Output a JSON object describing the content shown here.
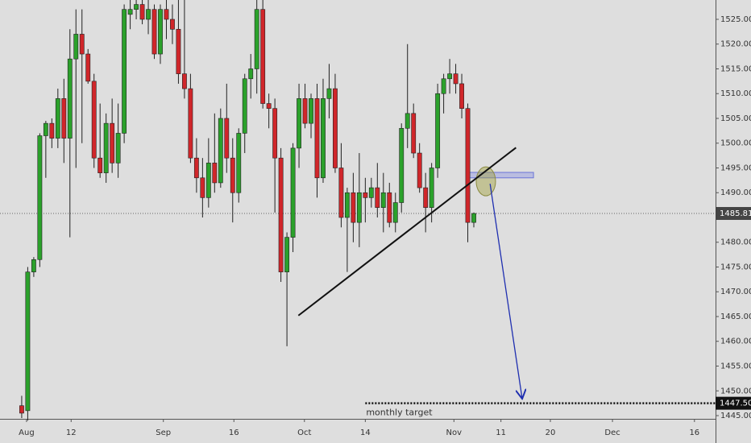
{
  "chart_data": {
    "type": "candlestick",
    "x": [
      0,
      1,
      2,
      3,
      4,
      5,
      6,
      7,
      8,
      9,
      10,
      11,
      12,
      13,
      14,
      15,
      16,
      17,
      18,
      19,
      20,
      21,
      22,
      23,
      24,
      25,
      26,
      27,
      28,
      29,
      30,
      31,
      32,
      33,
      34,
      35,
      36,
      37,
      38,
      39,
      40,
      41,
      42,
      43,
      44,
      45,
      46,
      47,
      48,
      49,
      50,
      51,
      52,
      53,
      54,
      55,
      56,
      57,
      58,
      59,
      60,
      61,
      62,
      63,
      64,
      65,
      66,
      67,
      68,
      69,
      70,
      71,
      72,
      73,
      74,
      75
    ],
    "open": [
      1447,
      1446,
      1474,
      1476.5,
      1501.5,
      1504,
      1501,
      1509,
      1501,
      1517,
      1522,
      1518,
      1512.5,
      1497,
      1494,
      1504,
      1496,
      1502,
      1526,
      1527,
      1528,
      1525,
      1527,
      1518,
      1527,
      1525,
      1523,
      1514,
      1511,
      1497,
      1493,
      1489,
      1496,
      1492,
      1505,
      1497,
      1490,
      1502,
      1513,
      1515,
      1527,
      1508,
      1507,
      1497,
      1474,
      1481,
      1499,
      1509,
      1504,
      1509,
      1493,
      1509,
      1511,
      1495,
      1485,
      1490,
      1484,
      1490,
      1489,
      1491,
      1487,
      1490,
      1484,
      1488,
      1503,
      1506,
      1498,
      1491,
      1487,
      1495,
      1510,
      1513,
      1514,
      1512,
      1507,
      1484
    ],
    "high": [
      1449,
      1475,
      1477,
      1502,
      1504.5,
      1505,
      1511,
      1513,
      1523,
      1527,
      1527,
      1519,
      1514,
      1508,
      1506,
      1509,
      1508,
      1528,
      1529,
      1529,
      1529,
      1529,
      1528,
      1528,
      1529,
      1528,
      1529,
      1529,
      1514,
      1501,
      1497,
      1501,
      1506,
      1507,
      1512,
      1501,
      1503,
      1514,
      1518,
      1529,
      1529,
      1510,
      1509,
      1499,
      1482,
      1500,
      1512,
      1512,
      1510,
      1512,
      1513,
      1516,
      1514,
      1500,
      1491,
      1494,
      1498,
      1493,
      1493,
      1496,
      1494,
      1492,
      1490,
      1504,
      1520,
      1508,
      1500,
      1494,
      1496,
      1512,
      1514,
      1517,
      1516,
      1514,
      1508,
      1486
    ],
    "low": [
      1444.5,
      1444,
      1473,
      1475,
      1493,
      1499,
      1499,
      1496,
      1481,
      1495,
      1500,
      1512,
      1495,
      1493,
      1492,
      1494,
      1493,
      1500,
      1523,
      1525,
      1524,
      1522,
      1517,
      1516,
      1521,
      1520,
      1512,
      1509,
      1496,
      1490,
      1485,
      1487,
      1490,
      1491,
      1494,
      1484,
      1488,
      1498,
      1509,
      1510,
      1507,
      1503,
      1486,
      1472,
      1459,
      1478,
      1495,
      1503,
      1501,
      1489,
      1492,
      1505,
      1494,
      1483,
      1474,
      1480,
      1479,
      1484,
      1487,
      1485,
      1482,
      1483,
      1482,
      1486,
      1499,
      1497,
      1490,
      1482,
      1484,
      1493,
      1506,
      1510,
      1510,
      1505,
      1480,
      1483
    ],
    "close": [
      1445.5,
      1474,
      1476.5,
      1501.5,
      1504,
      1501,
      1509,
      1501,
      1517,
      1522,
      1518,
      1512.5,
      1497,
      1494,
      1504,
      1496,
      1502,
      1527,
      1527,
      1528,
      1525,
      1527,
      1518,
      1527,
      1525,
      1523,
      1514,
      1511,
      1497,
      1493,
      1489,
      1496,
      1492,
      1505,
      1497,
      1490,
      1502,
      1513,
      1515,
      1527,
      1508,
      1507,
      1497,
      1474,
      1481,
      1499,
      1509,
      1504,
      1509,
      1493,
      1509,
      1511,
      1495,
      1485,
      1490,
      1484,
      1490,
      1489,
      1491,
      1487,
      1490,
      1484,
      1488,
      1503,
      1506,
      1498,
      1491,
      1487,
      1495,
      1510,
      1513,
      1514,
      1512,
      1507,
      1484,
      1485.81
    ],
    "up_color": "#2ba12b",
    "down_color": "#d0262a",
    "xlim": [
      -3.6,
      115.1
    ],
    "xticks": [
      {
        "value": 0.8,
        "label": "Aug"
      },
      {
        "value": 8.2,
        "label": "12"
      },
      {
        "value": 23.5,
        "label": "Sep"
      },
      {
        "value": 35.2,
        "label": "16"
      },
      {
        "value": 46.9,
        "label": "Oct"
      },
      {
        "value": 57,
        "label": "14"
      },
      {
        "value": 71.7,
        "label": "Nov"
      },
      {
        "value": 79.5,
        "label": "11"
      },
      {
        "value": 87.7,
        "label": "20"
      },
      {
        "value": 98,
        "label": "Dec"
      },
      {
        "value": 111.6,
        "label": "16"
      }
    ],
    "ylim": [
      1444.35,
      1528.9
    ],
    "yticks": [
      {
        "value": 1445,
        "label": "1445.00"
      },
      {
        "value": 1450,
        "label": "1450.00"
      },
      {
        "value": 1455,
        "label": "1455.00"
      },
      {
        "value": 1460,
        "label": "1460.00"
      },
      {
        "value": 1465,
        "label": "1465.00"
      },
      {
        "value": 1470,
        "label": "1470.00"
      },
      {
        "value": 1475,
        "label": "1475.00"
      },
      {
        "value": 1480,
        "label": "1480.00"
      },
      {
        "value": 1485,
        "label": "1485.00"
      },
      {
        "value": 1490,
        "label": "1490.00"
      },
      {
        "value": 1495,
        "label": "1495.00"
      },
      {
        "value": 1500,
        "label": "1500.00"
      },
      {
        "value": 1505,
        "label": "1505.00"
      },
      {
        "value": 1510,
        "label": "1510.00"
      },
      {
        "value": 1515,
        "label": "1515.00"
      },
      {
        "value": 1520,
        "label": "1520.00"
      },
      {
        "value": 1525,
        "label": "1525.00"
      }
    ],
    "last_price": 1485.81,
    "target": {
      "value": 1447.5,
      "label": "1447.50",
      "text": "monthly target",
      "from_x": 57
    },
    "trendline": {
      "x": [
        45.9,
        82
      ],
      "y": [
        1465.2,
        1499.1
      ]
    },
    "arrow": {
      "x": [
        77.7,
        83
      ],
      "y": [
        1491.8,
        1448.6
      ]
    },
    "zone": {
      "x": [
        74.2,
        84.9
      ],
      "y": [
        1493,
        1494.1
      ]
    },
    "highlight": {
      "x": 77,
      "y": 1492.3
    }
  }
}
